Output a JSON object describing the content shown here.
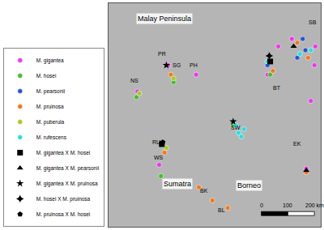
{
  "chart_data": {
    "type": "scatter",
    "xlim": [
      95.5,
      119
    ],
    "ylim": [
      -4,
      7.9
    ],
    "tick_labels": false,
    "grid": false,
    "legend": "lower left",
    "series": [
      {
        "name": "M. gigantea",
        "color": "#e43ee4",
        "marker": "circle",
        "x": [
          102.1,
          105.2,
          98.7,
          101.1,
          114.3,
          115.8,
          118.4,
          118.3,
          117.9,
          117.4,
          113.1
        ],
        "y": [
          4.6,
          4.1,
          3.2,
          -0.7,
          5.6,
          6.0,
          5.6,
          4.6,
          2.7,
          -0.9,
          4.1
        ]
      },
      {
        "name": "M. hosei",
        "color": "#4cb830",
        "marker": "circle",
        "x": [
          102.7,
          98.6,
          101.3,
          113.4,
          109.3
        ],
        "y": [
          3.7,
          2.9,
          -1.3,
          4.1,
          1.4
        ]
      },
      {
        "name": "M. pearsonii",
        "color": "#2a55c8",
        "marker": "circle",
        "x": [
          117.0,
          117.3,
          116.4,
          113.1
        ],
        "y": [
          6.0,
          5.4,
          5.0,
          4.6
        ]
      },
      {
        "name": "M. pruinosa",
        "color": "#ee7a22",
        "marker": "circle",
        "x": [
          102.4,
          101.7,
          105.5,
          107.0,
          108.7,
          113.7,
          116.4,
          117.6,
          117.4
        ],
        "y": [
          4.1,
          -0.05,
          -1.9,
          -2.6,
          -3.0,
          4.3,
          5.8,
          5.0,
          -1.1
        ]
      },
      {
        "name": "M. puberula",
        "color": "#a8c82e",
        "marker": "circle",
        "x": [
          102.7,
          101.9,
          98.9
        ],
        "y": [
          3.9,
          0.2,
          3.1
        ]
      },
      {
        "name": "M. rufescens",
        "color": "#33dada",
        "marker": "circle",
        "x": [
          109.6,
          109.9,
          110.2,
          110.5,
          116.7,
          113.1,
          117.9
        ],
        "y": [
          1.4,
          1.0,
          0.8,
          1.2,
          5.2,
          4.8,
          5.4
        ]
      },
      {
        "name": "M. gigantea X M. hosei",
        "color": "#000000",
        "marker": "square",
        "x": [
          101.4,
          113.4
        ],
        "y": [
          0.4,
          4.8
        ]
      },
      {
        "name": "M. gigantea X M. pearsonii",
        "color": "#000000",
        "marker": "triangle-up",
        "x": [
          117.4,
          116.0
        ],
        "y": [
          -1.0,
          5.6
        ]
      },
      {
        "name": "M. gigantea X M. pruinosa",
        "color": "#000000",
        "marker": "star",
        "x": [
          101.9,
          109.3
        ],
        "y": [
          4.6,
          1.6
        ]
      },
      {
        "name": "M. hosei X M. pruinosa",
        "color": "#000000",
        "marker": "star-diamond",
        "x": [
          113.3
        ],
        "y": [
          5.1
        ]
      },
      {
        "name": "M. pruinosa X M. hosei",
        "color": "#000000",
        "marker": "pentagon",
        "x": [
          101.5
        ],
        "y": [
          0.5
        ]
      }
    ],
    "region_labels": [
      {
        "text": "Malay Peninsula",
        "x": 101.7,
        "y": 7.1
      },
      {
        "text": "Sumatra",
        "x": 103.1,
        "y": -1.7
      },
      {
        "text": "Borneo",
        "x": 111.1,
        "y": -1.8
      }
    ],
    "site_labels": [
      {
        "text": "PR",
        "x": 101.4,
        "y": 5.2
      },
      {
        "text": "SG",
        "x": 103.0,
        "y": 4.6
      },
      {
        "text": "PH",
        "x": 104.9,
        "y": 4.6
      },
      {
        "text": "NS",
        "x": 98.4,
        "y": 3.8
      },
      {
        "text": "RU",
        "x": 100.8,
        "y": 0.5
      },
      {
        "text": "WS",
        "x": 101.1,
        "y": -0.3
      },
      {
        "text": "BK",
        "x": 106.1,
        "y": -2.1
      },
      {
        "text": "BL",
        "x": 108.0,
        "y": -3.1
      },
      {
        "text": "SW",
        "x": 109.6,
        "y": 1.3
      },
      {
        "text": "BT",
        "x": 114.2,
        "y": 3.4
      },
      {
        "text": "SB",
        "x": 118.1,
        "y": 6.9
      },
      {
        "text": "EK",
        "x": 116.4,
        "y": 0.4
      }
    ],
    "scale_bar": [
      "0",
      "100",
      "200 km"
    ]
  }
}
